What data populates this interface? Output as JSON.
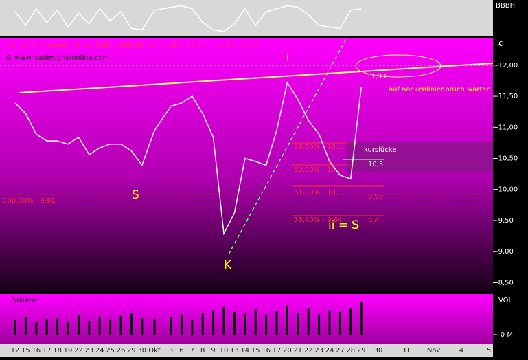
{
  "chart_data": {
    "type": "line",
    "title": "DTE GER 1 Stunde  29.10.2008 18:00:00 - 0 11,34 H 11,72 L 11,33 - 11,72",
    "source": "© www.tradesignalonline.com",
    "unit": "€",
    "color": "#ffffff",
    "categories": [
      "12",
      "15",
      "16",
      "17",
      "18",
      "19",
      "22",
      "23",
      "24",
      "25",
      "26",
      "29",
      "30",
      "Okt",
      "3",
      "6",
      "7",
      "8",
      "9",
      "10",
      "13",
      "14",
      "15",
      "16",
      "17",
      "20",
      "21",
      "22",
      "23",
      "24",
      "27",
      "28",
      "29",
      "30",
      "31",
      "Nov",
      "4",
      "5"
    ],
    "values": [
      11.39,
      11.22,
      10.89,
      10.78,
      10.78,
      10.73,
      10.84,
      10.56,
      10.67,
      10.73,
      10.73,
      10.62,
      10.39,
      10.95,
      11.34,
      11.39,
      11.5,
      11.22,
      10.84,
      9.29,
      9.62,
      10.5,
      10.45,
      10.39,
      10.95,
      11.72,
      11.45,
      11.11,
      10.89,
      10.45,
      10.23,
      10.17,
      11.65,
      null,
      null,
      null,
      null,
      null
    ],
    "ylim": [
      8.35,
      12.44
    ],
    "yticks": [
      {
        "value": 12,
        "label": "-12,00"
      },
      {
        "value": 11.5,
        "label": "-11,50"
      },
      {
        "value": 11,
        "label": "-11,00"
      },
      {
        "value": 10.5,
        "label": "-10,50"
      },
      {
        "value": 10,
        "label": "-10,00"
      },
      {
        "value": 9.5,
        "label": "-9,50"
      },
      {
        "value": 9,
        "label": "-9,00"
      },
      {
        "value": 8.5,
        "label": "-8,50"
      }
    ],
    "oscillator": {
      "label": "BBBH",
      "color": "#ffffff",
      "ylim": [
        -1,
        1
      ],
      "values": [
        0.4,
        -0.5,
        0.6,
        -0.3,
        0.5,
        -0.6,
        0.3,
        -0.4,
        0.6,
        -0.2,
        0.4,
        -0.7,
        -0.8,
        0.5,
        0.7,
        0.8,
        0.6,
        -0.3,
        -0.8,
        -0.9,
        -0.4,
        0.6,
        -0.5,
        0.4,
        0.6,
        0.8,
        0.7,
        0.2,
        -0.5,
        -0.6,
        -0.7,
        0.5,
        0.6,
        null,
        null,
        null,
        null,
        null
      ]
    },
    "volume": {
      "label": "Volume",
      "axis_label": "VOL",
      "color": "#000000",
      "ylim": [
        -1.1,
        5
      ],
      "yticks": [
        {
          "value": 0,
          "label": "- 0 M"
        }
      ],
      "values": [
        1.8,
        2.2,
        1.5,
        1.9,
        2.0,
        1.6,
        2.4,
        1.7,
        2.1,
        1.8,
        2.3,
        2.6,
        2.0,
        1.9,
        2.2,
        2.5,
        1.8,
        2.7,
        3.0,
        3.4,
        2.8,
        2.6,
        3.1,
        2.4,
        2.9,
        3.6,
        2.7,
        3.3,
        2.5,
        3.0,
        2.8,
        3.2,
        4.0,
        null,
        null,
        null,
        null,
        null
      ]
    },
    "annotations": [
      "S",
      "S",
      "i",
      "K",
      "ii = S",
      "auf nackenlinienbruch warten",
      "kurslücke",
      "10,5",
      "100,00% - 9,92",
      "38,20% - 10,...",
      "50,00% - 10,...",
      "61,80% - 10,...",
      "76,40% - 9,64",
      "9,96",
      "9,6",
      "11,93"
    ]
  }
}
